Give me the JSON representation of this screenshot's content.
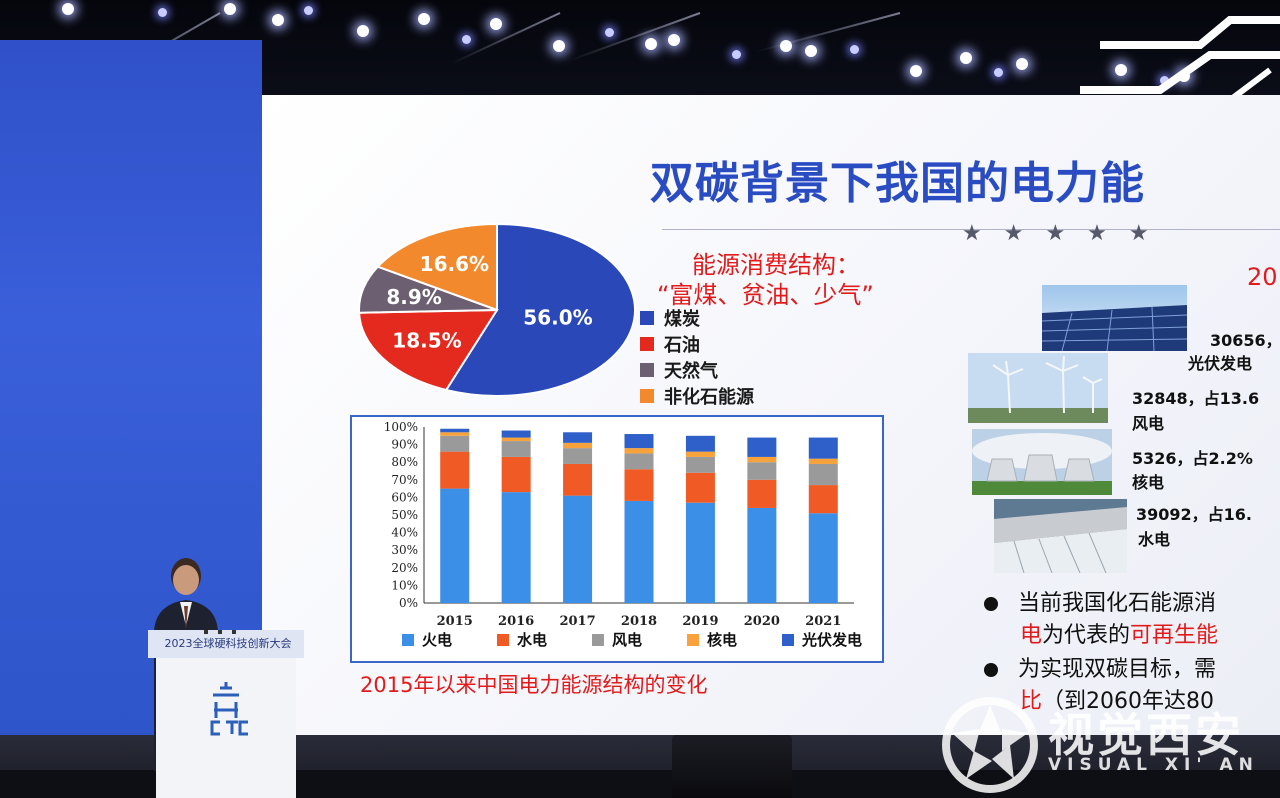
{
  "slide": {
    "title": "双碳背景下我国的电力能",
    "stars": "★★★★★",
    "consumption_heading_line1": "能源消费结构：",
    "consumption_heading_line2": "“富煤、贫油、少气”",
    "year_heading": "20",
    "pie_chart_caption": "",
    "bar_caption": "2015年以来中国电力能源结构的变化",
    "bullets": [
      {
        "line1_parts": [
          "当前我国化石能源消"
        ],
        "line2_parts": [
          "电",
          "为代表的",
          "可再生能"
        ]
      },
      {
        "line1_parts": [
          "为实现双碳目标，需"
        ],
        "line2_parts": [
          "比",
          "（到2060年达80"
        ]
      }
    ],
    "power_items": [
      {
        "value": "30656，",
        "label": "光伏发电",
        "icon": "solar-panel-photo"
      },
      {
        "value": "32848，占13.6",
        "label": "风电",
        "icon": "wind-turbine-photo"
      },
      {
        "value": "5326，占2.2%",
        "label": "核电",
        "icon": "nuclear-plant-photo"
      },
      {
        "value": "39092，占16.",
        "label": "水电",
        "icon": "hydro-dam-photo"
      }
    ]
  },
  "chart_data": [
    {
      "type": "pie",
      "title": "",
      "categories": [
        "煤炭",
        "石油",
        "天然气",
        "非化石能源"
      ],
      "values": [
        56.0,
        18.5,
        8.9,
        16.6
      ],
      "labels": [
        "56.0%",
        "18.5%",
        "8.9%",
        "16.6%"
      ],
      "colors": [
        "#2b48b8",
        "#e42a1f",
        "#6d5f72",
        "#f2892c"
      ],
      "legend": "right"
    },
    {
      "type": "bar",
      "stacked": true,
      "title": "",
      "categories": [
        "2015",
        "2016",
        "2017",
        "2018",
        "2019",
        "2020",
        "2021"
      ],
      "series": [
        {
          "name": "火电",
          "color": "#3b8fe6",
          "values": [
            65,
            63,
            61,
            58,
            57,
            54,
            51
          ]
        },
        {
          "name": "水电",
          "color": "#f05a24",
          "values": [
            21,
            20,
            18,
            18,
            17,
            16,
            16
          ]
        },
        {
          "name": "风电",
          "color": "#9a9a9a",
          "values": [
            9,
            9,
            9,
            9,
            9,
            10,
            12
          ]
        },
        {
          "name": "核电",
          "color": "#f7a23a",
          "values": [
            2,
            2,
            3,
            3,
            3,
            3,
            3
          ]
        },
        {
          "name": "光伏发电",
          "color": "#2f5fc9",
          "values": [
            2,
            4,
            6,
            8,
            9,
            11,
            12
          ]
        }
      ],
      "yticks": [
        "0%",
        "10%",
        "20%",
        "30%",
        "40%",
        "50%",
        "60%",
        "70%",
        "80%",
        "90%",
        "100%"
      ],
      "ylim": [
        0,
        100
      ],
      "legend": "bottom"
    }
  ],
  "podium": {
    "label": "2023全球硬科技创新大会",
    "logo": "CTC"
  },
  "watermark": {
    "text_cn": "视觉西安",
    "text_en": "VISUAL XI' AN"
  }
}
